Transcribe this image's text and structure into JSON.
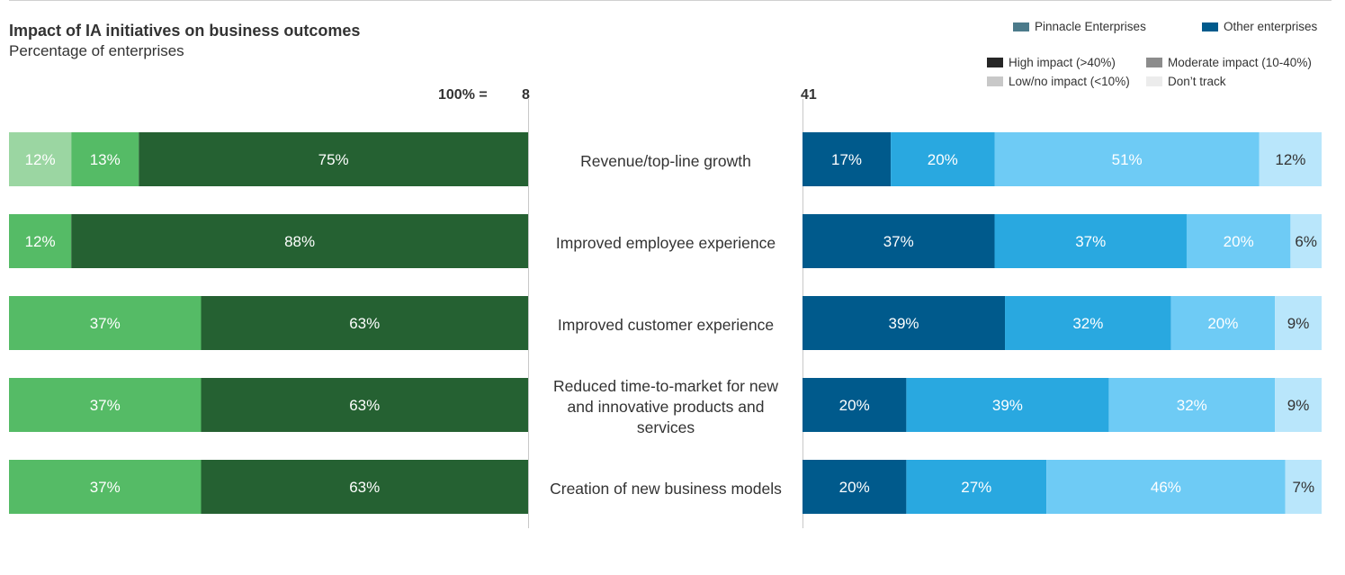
{
  "title": "Impact of IA initiatives on business outcomes",
  "subtitle": "Percentage of enterprises",
  "legend": {
    "groups": [
      {
        "label": "Pinnacle Enterprises",
        "color": "#4c7b8b"
      },
      {
        "label": "Other enterprises",
        "color": "#005a8c"
      }
    ],
    "impact": [
      {
        "label": "High impact (>40%)",
        "color": "#262626"
      },
      {
        "label": "Moderate impact (10-40%)",
        "color": "#8c8c8c"
      },
      {
        "label": "Low/no impact (<10%)",
        "color": "#c8c8c8"
      },
      {
        "label": "Don’t track",
        "color": "#ececec"
      }
    ]
  },
  "n_labels": {
    "prefix": "100% =",
    "pinnacle": "8",
    "other": "41"
  },
  "chart_data": {
    "type": "bar",
    "orientation": "horizontal",
    "stacked": true,
    "normalized_percent": true,
    "title": "Impact of IA initiatives on business outcomes",
    "subtitle": "Percentage of enterprises",
    "categories": [
      "Revenue/top-line growth",
      "Improved employee experience",
      "Improved customer experience",
      "Reduced time-to-market for new and innovative products and services",
      "Creation of new business models"
    ],
    "category_lines": [
      [
        "Revenue/top-line growth"
      ],
      [
        "Improved employee experience"
      ],
      [
        "Improved customer experience"
      ],
      [
        "Reduced time-to-market for new",
        "and innovative products and",
        "services"
      ],
      [
        "Creation of new business models"
      ]
    ],
    "panels": [
      {
        "name": "Pinnacle Enterprises",
        "n": 8,
        "direction": "right-to-left",
        "segment_order": [
          "Don’t track",
          "Low/no impact (<10%)",
          "Moderate impact (10-40%)",
          "High impact (>40%)"
        ],
        "colors": {
          "Don’t track": "#e2f3e4",
          "Low/no impact (<10%)": "#9bd6a2",
          "Moderate impact (10-40%)": "#55bb66",
          "High impact (>40%)": "#256132"
        },
        "series": [
          {
            "name": "Low/no impact (<10%)",
            "values": [
              12,
              0,
              0,
              0,
              0
            ]
          },
          {
            "name": "Moderate impact (10-40%)",
            "values": [
              13,
              12,
              37,
              37,
              37
            ]
          },
          {
            "name": "High impact (>40%)",
            "values": [
              75,
              88,
              63,
              63,
              63
            ]
          }
        ]
      },
      {
        "name": "Other enterprises",
        "n": 41,
        "direction": "left-to-right",
        "segment_order": [
          "High impact (>40%)",
          "Moderate impact (10-40%)",
          "Low/no impact (<10%)",
          "Don’t track"
        ],
        "colors": {
          "High impact (>40%)": "#005a8c",
          "Moderate impact (10-40%)": "#29a8e0",
          "Low/no impact (<10%)": "#6ecbf5",
          "Don’t track": "#b9e6fb"
        },
        "series": [
          {
            "name": "High impact (>40%)",
            "values": [
              17,
              37,
              39,
              20,
              20
            ]
          },
          {
            "name": "Moderate impact (10-40%)",
            "values": [
              20,
              37,
              32,
              39,
              27
            ]
          },
          {
            "name": "Low/no impact (<10%)",
            "values": [
              51,
              20,
              20,
              32,
              46
            ]
          },
          {
            "name": "Don’t track",
            "values": [
              12,
              6,
              9,
              9,
              7
            ]
          }
        ]
      }
    ]
  }
}
